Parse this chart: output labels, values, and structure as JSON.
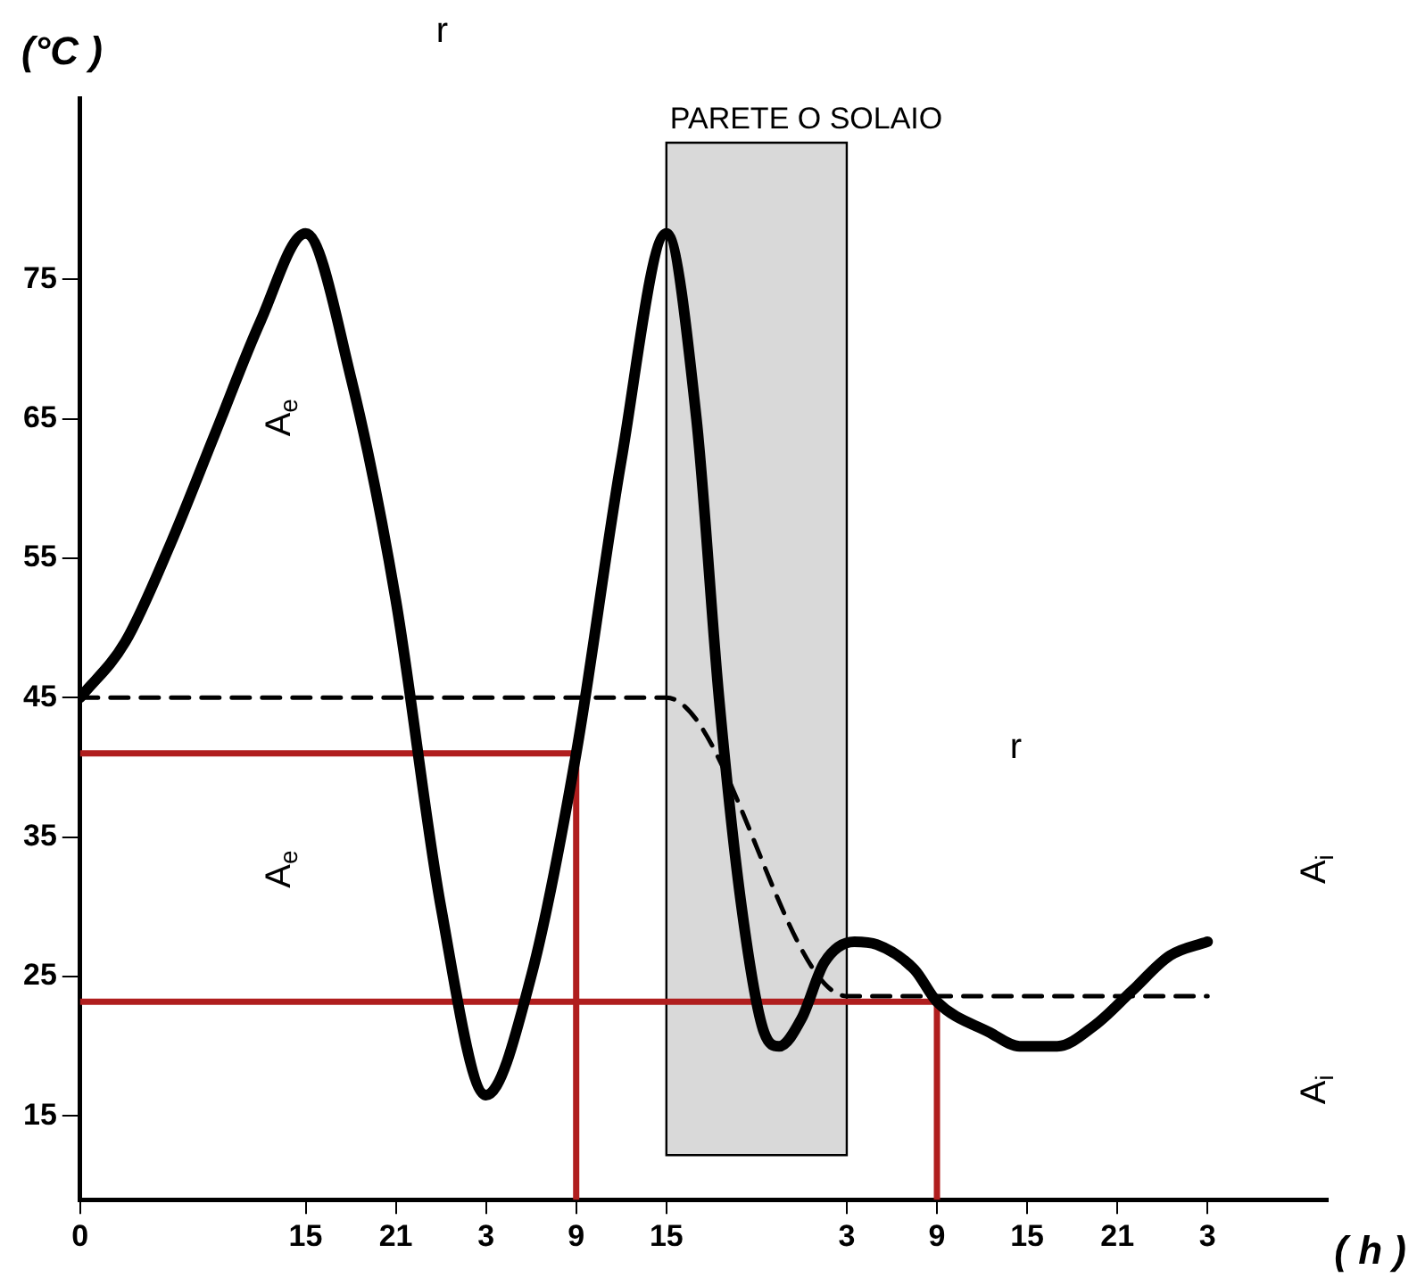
{
  "chart_data": {
    "type": "line",
    "xlabel": "( h )",
    "ylabel": "(°C )",
    "xlim": [
      "--01-01T00:00",
      "--01-04T11:00"
    ],
    "ylim": [
      9,
      88
    ],
    "xticks": [
      {
        "value": "--01-01T00:00",
        "label": "0"
      },
      {
        "value": "--01-01T15:00",
        "label": "15"
      },
      {
        "value": "--01-01T21:00",
        "label": "21"
      },
      {
        "value": "--01-02T03:00",
        "label": "3"
      },
      {
        "value": "--01-02T09:00",
        "label": "9"
      },
      {
        "value": "--01-02T15:00",
        "label": "15"
      },
      {
        "value": "--01-03T03:00",
        "label": "3"
      },
      {
        "value": "--01-03T09:00",
        "label": "9"
      },
      {
        "value": "--01-03T15:00",
        "label": "15"
      },
      {
        "value": "--01-03T21:00",
        "label": "21"
      },
      {
        "value": "--01-04T03:00",
        "label": "3"
      }
    ],
    "yticks": [
      15,
      25,
      35,
      45,
      55,
      65,
      75
    ],
    "grid": false,
    "legend": false,
    "marker": "none",
    "bands": [
      {
        "axis": "x",
        "from": "--01-02T15:00",
        "to": "--01-03T03:00",
        "label": "PARETE O SOLAIO",
        "color": "#d9d9d9"
      }
    ],
    "series": [
      {
        "color": "#000000",
        "x": [
          "--01-01T00:00",
          "--01-01T03:00",
          "--01-01T06:00",
          "--01-01T09:00",
          "--01-01T12:00",
          "--01-01T15:00",
          "--01-01T18:00",
          "--01-01T21:00",
          "--01-02T00:00",
          "--01-02T03:00",
          "--01-02T06:00",
          "--01-02T09:00",
          "--01-02T12:00",
          "--01-02T15:00",
          "--01-02T17:00",
          "--01-02T18:30",
          "--01-02T20:00",
          "--01-02T21:30",
          "--01-02T22:30",
          "--01-03T00:00",
          "--01-03T01:30",
          "--01-03T03:30",
          "--01-03T05:00",
          "--01-03T07:30",
          "--01-03T09:00",
          "--01-03T12:30",
          "--01-03T14:30",
          "--01-03T17:00",
          "--01-03T19:30",
          "--01-03T22:00",
          "--01-04T00:30",
          "--01-04T03:00"
        ],
        "values": [
          45,
          49,
          56,
          64,
          72,
          78.3,
          68,
          52,
          30,
          16.5,
          25,
          41,
          62,
          78.3,
          65,
          45,
          30,
          21,
          20,
          22,
          26,
          27.5,
          27.3,
          25.5,
          23.2,
          21,
          20,
          20,
          21.5,
          24,
          26.5,
          27.5
        ]
      },
      {
        "color": "#000000",
        "line_style": "dashed",
        "x": [
          "--01-01T00:00",
          "--01-02T15:00",
          "--01-03T03:00",
          "--01-04T03:00"
        ],
        "values": [
          45,
          45,
          23.6,
          23.6
        ]
      },
      {
        "color": "#b01e1e",
        "x": [
          "--01-02T09:00",
          "--01-02T09:00",
          "--01-01T00:00"
        ],
        "values": [
          9,
          41,
          41
        ]
      },
      {
        "color": "#b01e1e",
        "x": [
          "--01-03T09:00",
          "--01-03T09:00",
          "--01-01T00:00"
        ],
        "values": [
          9,
          23.2,
          23.2
        ]
      }
    ],
    "annotations": [
      "r",
      "A$_{e}$",
      "A$_{e}$",
      "r",
      "A$_{i}$",
      "A$_{i}$"
    ]
  }
}
